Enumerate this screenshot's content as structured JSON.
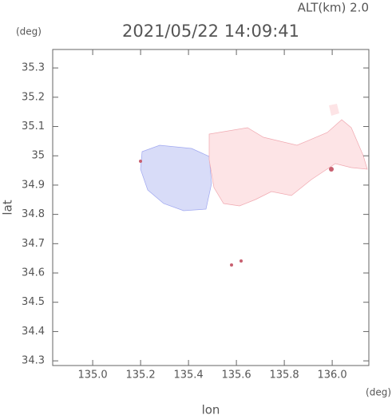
{
  "chart_data": {
    "type": "map",
    "title": "2021/05/22 14:09:41",
    "annotation": "ALT(km) 2.0",
    "y_unit": "(deg)",
    "x_unit": "(deg)",
    "xlabel": "lon",
    "ylabel": "lat",
    "xlim": [
      134.833,
      136.153
    ],
    "ylim": [
      34.284,
      35.363
    ],
    "xticks": [
      {
        "value": 135.0,
        "label": "135.0"
      },
      135.2,
      135.4,
      135.6,
      135.8,
      {
        "value": 136.0,
        "label": "136.0"
      }
    ],
    "yticks": [
      34.3,
      34.4,
      34.5,
      34.6,
      34.7,
      34.8,
      34.9,
      35.0,
      35.1,
      35.2,
      35.3
    ]
  }
}
